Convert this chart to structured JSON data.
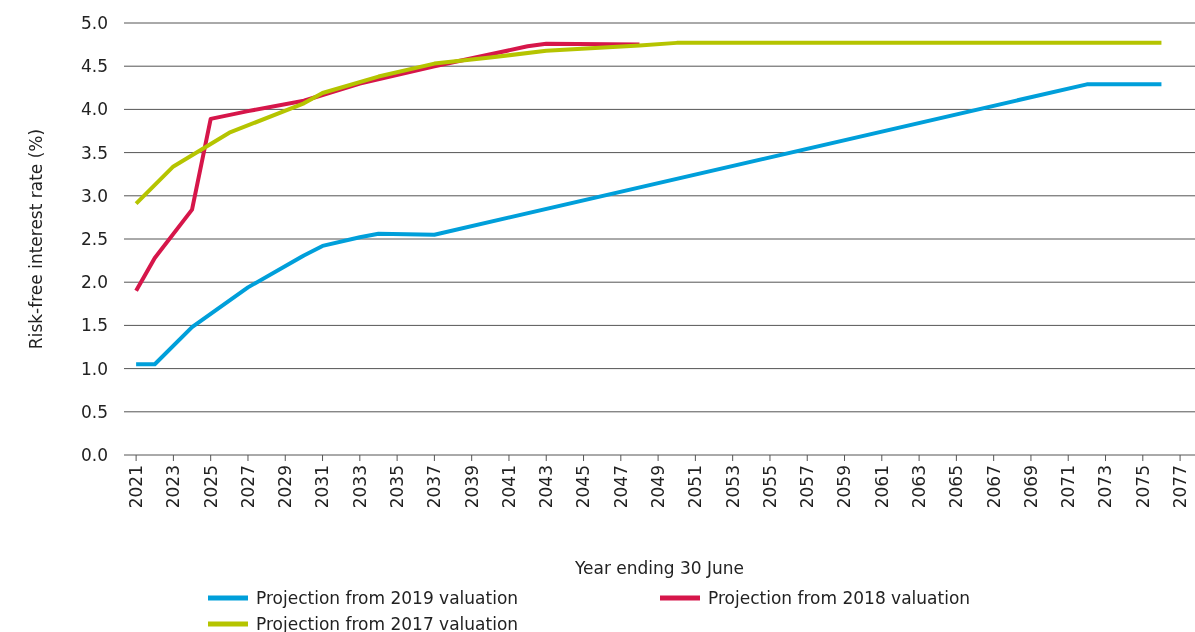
{
  "chart_data": {
    "type": "line",
    "xlabel": "Year ending 30 June",
    "ylabel": "Risk-free interest rate (%)",
    "xlim": [
      2020.35,
      2077.8
    ],
    "xticks": [
      2021,
      2023,
      2025,
      2027,
      2029,
      2031,
      2033,
      2035,
      2037,
      2039,
      2041,
      2043,
      2045,
      2047,
      2049,
      2051,
      2053,
      2055,
      2057,
      2059,
      2061,
      2063,
      2065,
      2067,
      2069,
      2071,
      2073,
      2075,
      2077
    ],
    "ylim": [
      0,
      5
    ],
    "yticks": [
      {
        "value": 0,
        "label": "0.0"
      },
      {
        "value": 0.5,
        "label": "0.5"
      },
      {
        "value": 1,
        "label": "1.0"
      },
      {
        "value": 1.5,
        "label": "1.5"
      },
      {
        "value": 2,
        "label": "2.0"
      },
      {
        "value": 2.5,
        "label": "2.5"
      },
      {
        "value": 3,
        "label": "3.0"
      },
      {
        "value": 3.5,
        "label": "3.5"
      },
      {
        "value": 4,
        "label": "4.0"
      },
      {
        "value": 4.5,
        "label": "4.5"
      },
      {
        "value": 5,
        "label": "5.0"
      }
    ],
    "grid": "y",
    "legend": "bottom",
    "marker": "none",
    "line_style": "solid",
    "series": [
      {
        "name": "Projection from 2019 valuation",
        "color": "#009fda",
        "x": [
          2021,
          2022,
          2024,
          2027,
          2030,
          2031,
          2033,
          2034,
          2037,
          2072,
          2076
        ],
        "values": [
          1.05,
          1.05,
          1.48,
          1.94,
          2.31,
          2.42,
          2.52,
          2.56,
          2.55,
          4.29,
          4.29
        ]
      },
      {
        "name": "Projection from 2018 valuation",
        "color": "#d6164a",
        "x": [
          2021,
          2022,
          2024,
          2025,
          2027,
          2030,
          2033,
          2037,
          2042,
          2043,
          2048
        ],
        "values": [
          1.9,
          2.28,
          2.84,
          3.89,
          3.98,
          4.1,
          4.3,
          4.5,
          4.73,
          4.76,
          4.75
        ]
      },
      {
        "name": "Projection from 2017 valuation",
        "color": "#b5c400",
        "x": [
          2021,
          2023,
          2026,
          2030,
          2031,
          2034,
          2037,
          2040,
          2043,
          2048,
          2050,
          2076
        ],
        "values": [
          2.91,
          3.34,
          3.73,
          4.07,
          4.19,
          4.38,
          4.53,
          4.6,
          4.68,
          4.74,
          4.77,
          4.77
        ]
      }
    ]
  }
}
